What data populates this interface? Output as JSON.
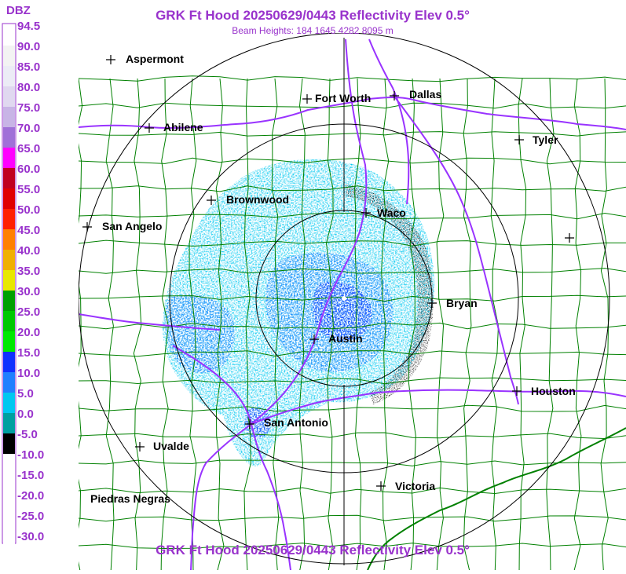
{
  "header": {
    "title": "GRK Ft Hood 20250629/0443 Reflectivity Elev 0.5°",
    "subtitle": "Beam Heights: 184 1645 4282 8095 m"
  },
  "footer": {
    "title": "GRK Ft Hood 20250629/0443 Reflectivity Elev 0.5°"
  },
  "legend": {
    "unit": "DBZ",
    "levels": [
      {
        "label": "94.5",
        "color": "#ffffff"
      },
      {
        "label": "90.0",
        "color": "#f3f3f3"
      },
      {
        "label": "85.0",
        "color": "#ececf6"
      },
      {
        "label": "80.0",
        "color": "#e0d8f0"
      },
      {
        "label": "75.0",
        "color": "#c8b4e6"
      },
      {
        "label": "70.0",
        "color": "#a070d8"
      },
      {
        "label": "65.0",
        "color": "#ff00ff"
      },
      {
        "label": "60.0",
        "color": "#c00020"
      },
      {
        "label": "55.0",
        "color": "#e00000"
      },
      {
        "label": "50.0",
        "color": "#ff2000"
      },
      {
        "label": "45.0",
        "color": "#ff8000"
      },
      {
        "label": "40.0",
        "color": "#f0b000"
      },
      {
        "label": "35.0",
        "color": "#e8e800"
      },
      {
        "label": "30.0",
        "color": "#00a000"
      },
      {
        "label": "25.0",
        "color": "#00c800"
      },
      {
        "label": "20.0",
        "color": "#00e800"
      },
      {
        "label": "15.0",
        "color": "#1030ff"
      },
      {
        "label": "10.0",
        "color": "#2080ff"
      },
      {
        "label": "5.0",
        "color": "#00c8f0"
      },
      {
        "label": "0.0",
        "color": "#00a0a0"
      },
      {
        "label": "-5.0",
        "color": "#000000"
      },
      {
        "label": "-10.0",
        "color": "#ffffff"
      },
      {
        "label": "-15.0",
        "color": "#ffffff"
      },
      {
        "label": "-20.0",
        "color": "#ffffff"
      },
      {
        "label": "-25.0",
        "color": "#ffffff"
      },
      {
        "label": "-30.0",
        "color": "#ffffff"
      }
    ]
  },
  "cities": [
    {
      "name": "Aspermont"
    },
    {
      "name": "Fort Worth"
    },
    {
      "name": "Dallas"
    },
    {
      "name": "Abilene"
    },
    {
      "name": "Tyler"
    },
    {
      "name": "Brownwood"
    },
    {
      "name": "Waco"
    },
    {
      "name": "San Angelo"
    },
    {
      "name": "Bryan"
    },
    {
      "name": "Austin"
    },
    {
      "name": "Houston"
    },
    {
      "name": "San Antonio"
    },
    {
      "name": "Uvalde"
    },
    {
      "name": "Victoria"
    },
    {
      "name": "Piedras Negras"
    }
  ],
  "colors": {
    "text_accent": "#9933cc",
    "county_lines": "#008000",
    "highways": "#9933ff",
    "range_rings": "#000000",
    "echo_light": "#00c8f0",
    "echo_mid": "#2080ff",
    "echo_heavy": "#1030ff"
  }
}
